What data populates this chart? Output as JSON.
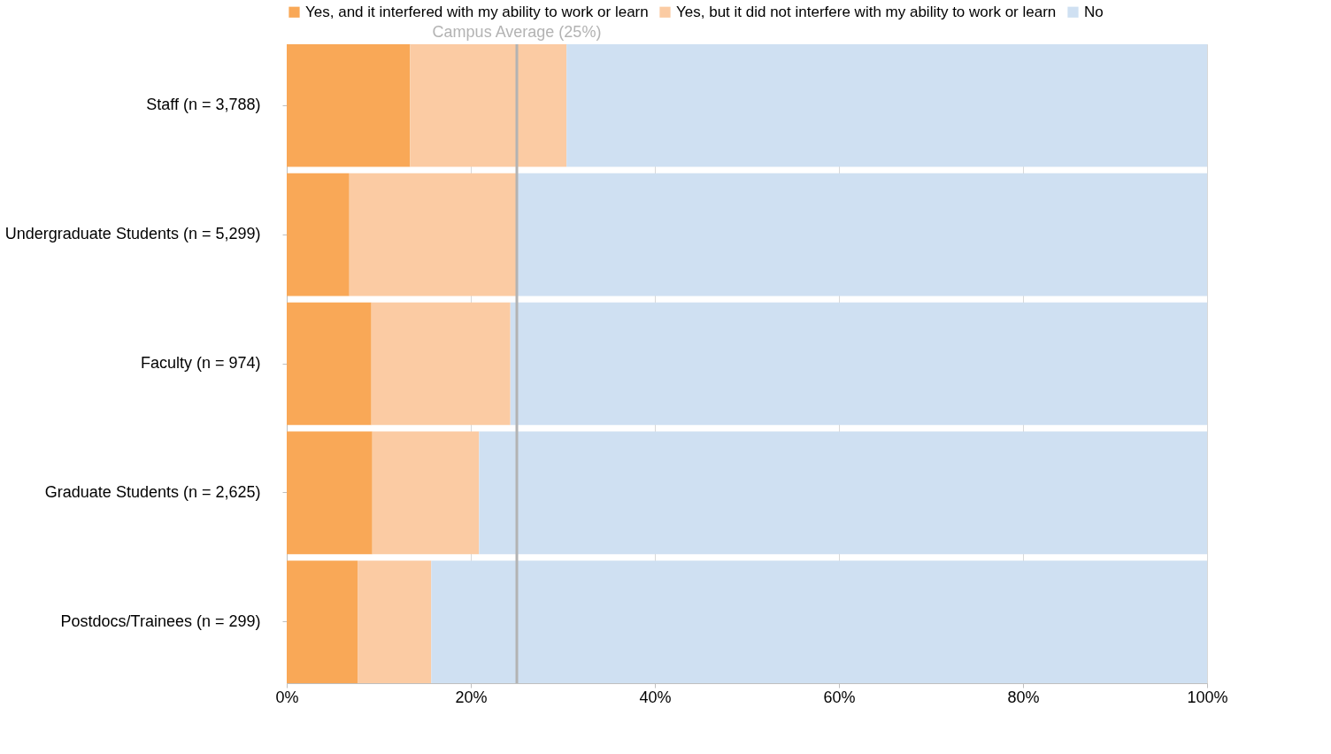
{
  "chart_data": {
    "type": "bar",
    "orientation": "horizontal",
    "stacked": true,
    "categories": [
      "Staff (n = 3,788)",
      "Undergraduate Students (n = 5,299)",
      "Faculty (n = 974)",
      "Graduate Students (n = 2,625)",
      "Postdocs/Trainees (n = 299)"
    ],
    "series": [
      {
        "name": "Yes, and it interfered with my ability to work or learn",
        "color": "#f9a857",
        "values": [
          13.4,
          6.8,
          9.2,
          9.3,
          7.7
        ]
      },
      {
        "name": "Yes, but it did not interfere with my ability to work or learn",
        "color": "#fbcba3",
        "values": [
          17.0,
          18.3,
          15.1,
          11.6,
          8.0
        ]
      },
      {
        "name": "No",
        "color": "#cfe0f2",
        "values": [
          69.6,
          74.9,
          75.7,
          79.1,
          84.3
        ]
      }
    ],
    "xlim": [
      0,
      100
    ],
    "xticks": [
      {
        "value": 0,
        "label": "0%"
      },
      {
        "value": 20,
        "label": "20%"
      },
      {
        "value": 40,
        "label": "40%"
      },
      {
        "value": 60,
        "label": "60%"
      },
      {
        "value": 80,
        "label": "80%"
      },
      {
        "value": 100,
        "label": "100%"
      }
    ],
    "ref_lines": [
      {
        "axis": "x",
        "value": 25,
        "label": "Campus Average (25%)",
        "color": "#b3b3b3"
      }
    ],
    "grid": "x",
    "legend": "top"
  }
}
